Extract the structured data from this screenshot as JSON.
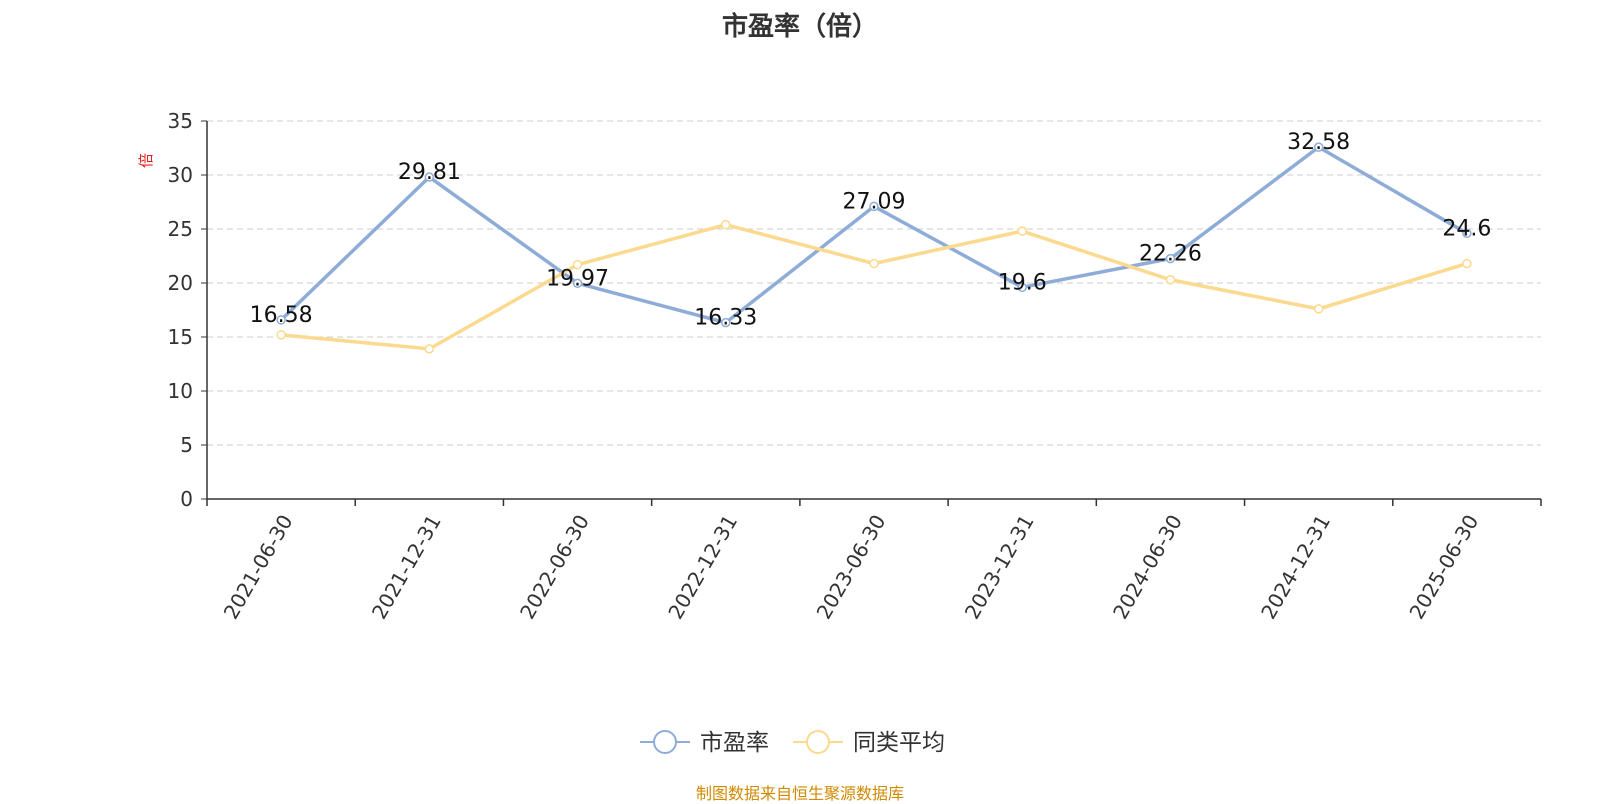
{
  "title": "市盈率（倍）",
  "unit_label": "倍",
  "source": "制图数据来自恒生聚源数据库",
  "colors": {
    "series1": "#8eacd8",
    "series2": "#fbd98e",
    "grid": "#cccccc",
    "axis": "#333333"
  },
  "chart_data": {
    "type": "line",
    "x": [
      "2021-06-30",
      "2021-12-31",
      "2022-06-30",
      "2022-12-31",
      "2023-06-30",
      "2023-12-31",
      "2024-06-30",
      "2024-12-31",
      "2025-06-30"
    ],
    "ylim": [
      0,
      35
    ],
    "yticks": [
      0,
      5,
      10,
      15,
      20,
      25,
      30,
      35
    ],
    "grid": true,
    "legend_position": "bottom-center",
    "series": [
      {
        "name": "市盈率",
        "values": [
          16.58,
          29.81,
          19.97,
          16.33,
          27.09,
          19.6,
          22.26,
          32.58,
          24.6
        ],
        "data_labels": [
          "16.58",
          "29.81",
          "19.97",
          "16.33",
          "27.09",
          "19.6",
          "22.26",
          "32.58",
          "24.6"
        ]
      },
      {
        "name": "同类平均",
        "values": [
          15.2,
          13.9,
          21.7,
          25.4,
          21.8,
          24.8,
          20.3,
          17.6,
          21.8
        ]
      }
    ]
  }
}
